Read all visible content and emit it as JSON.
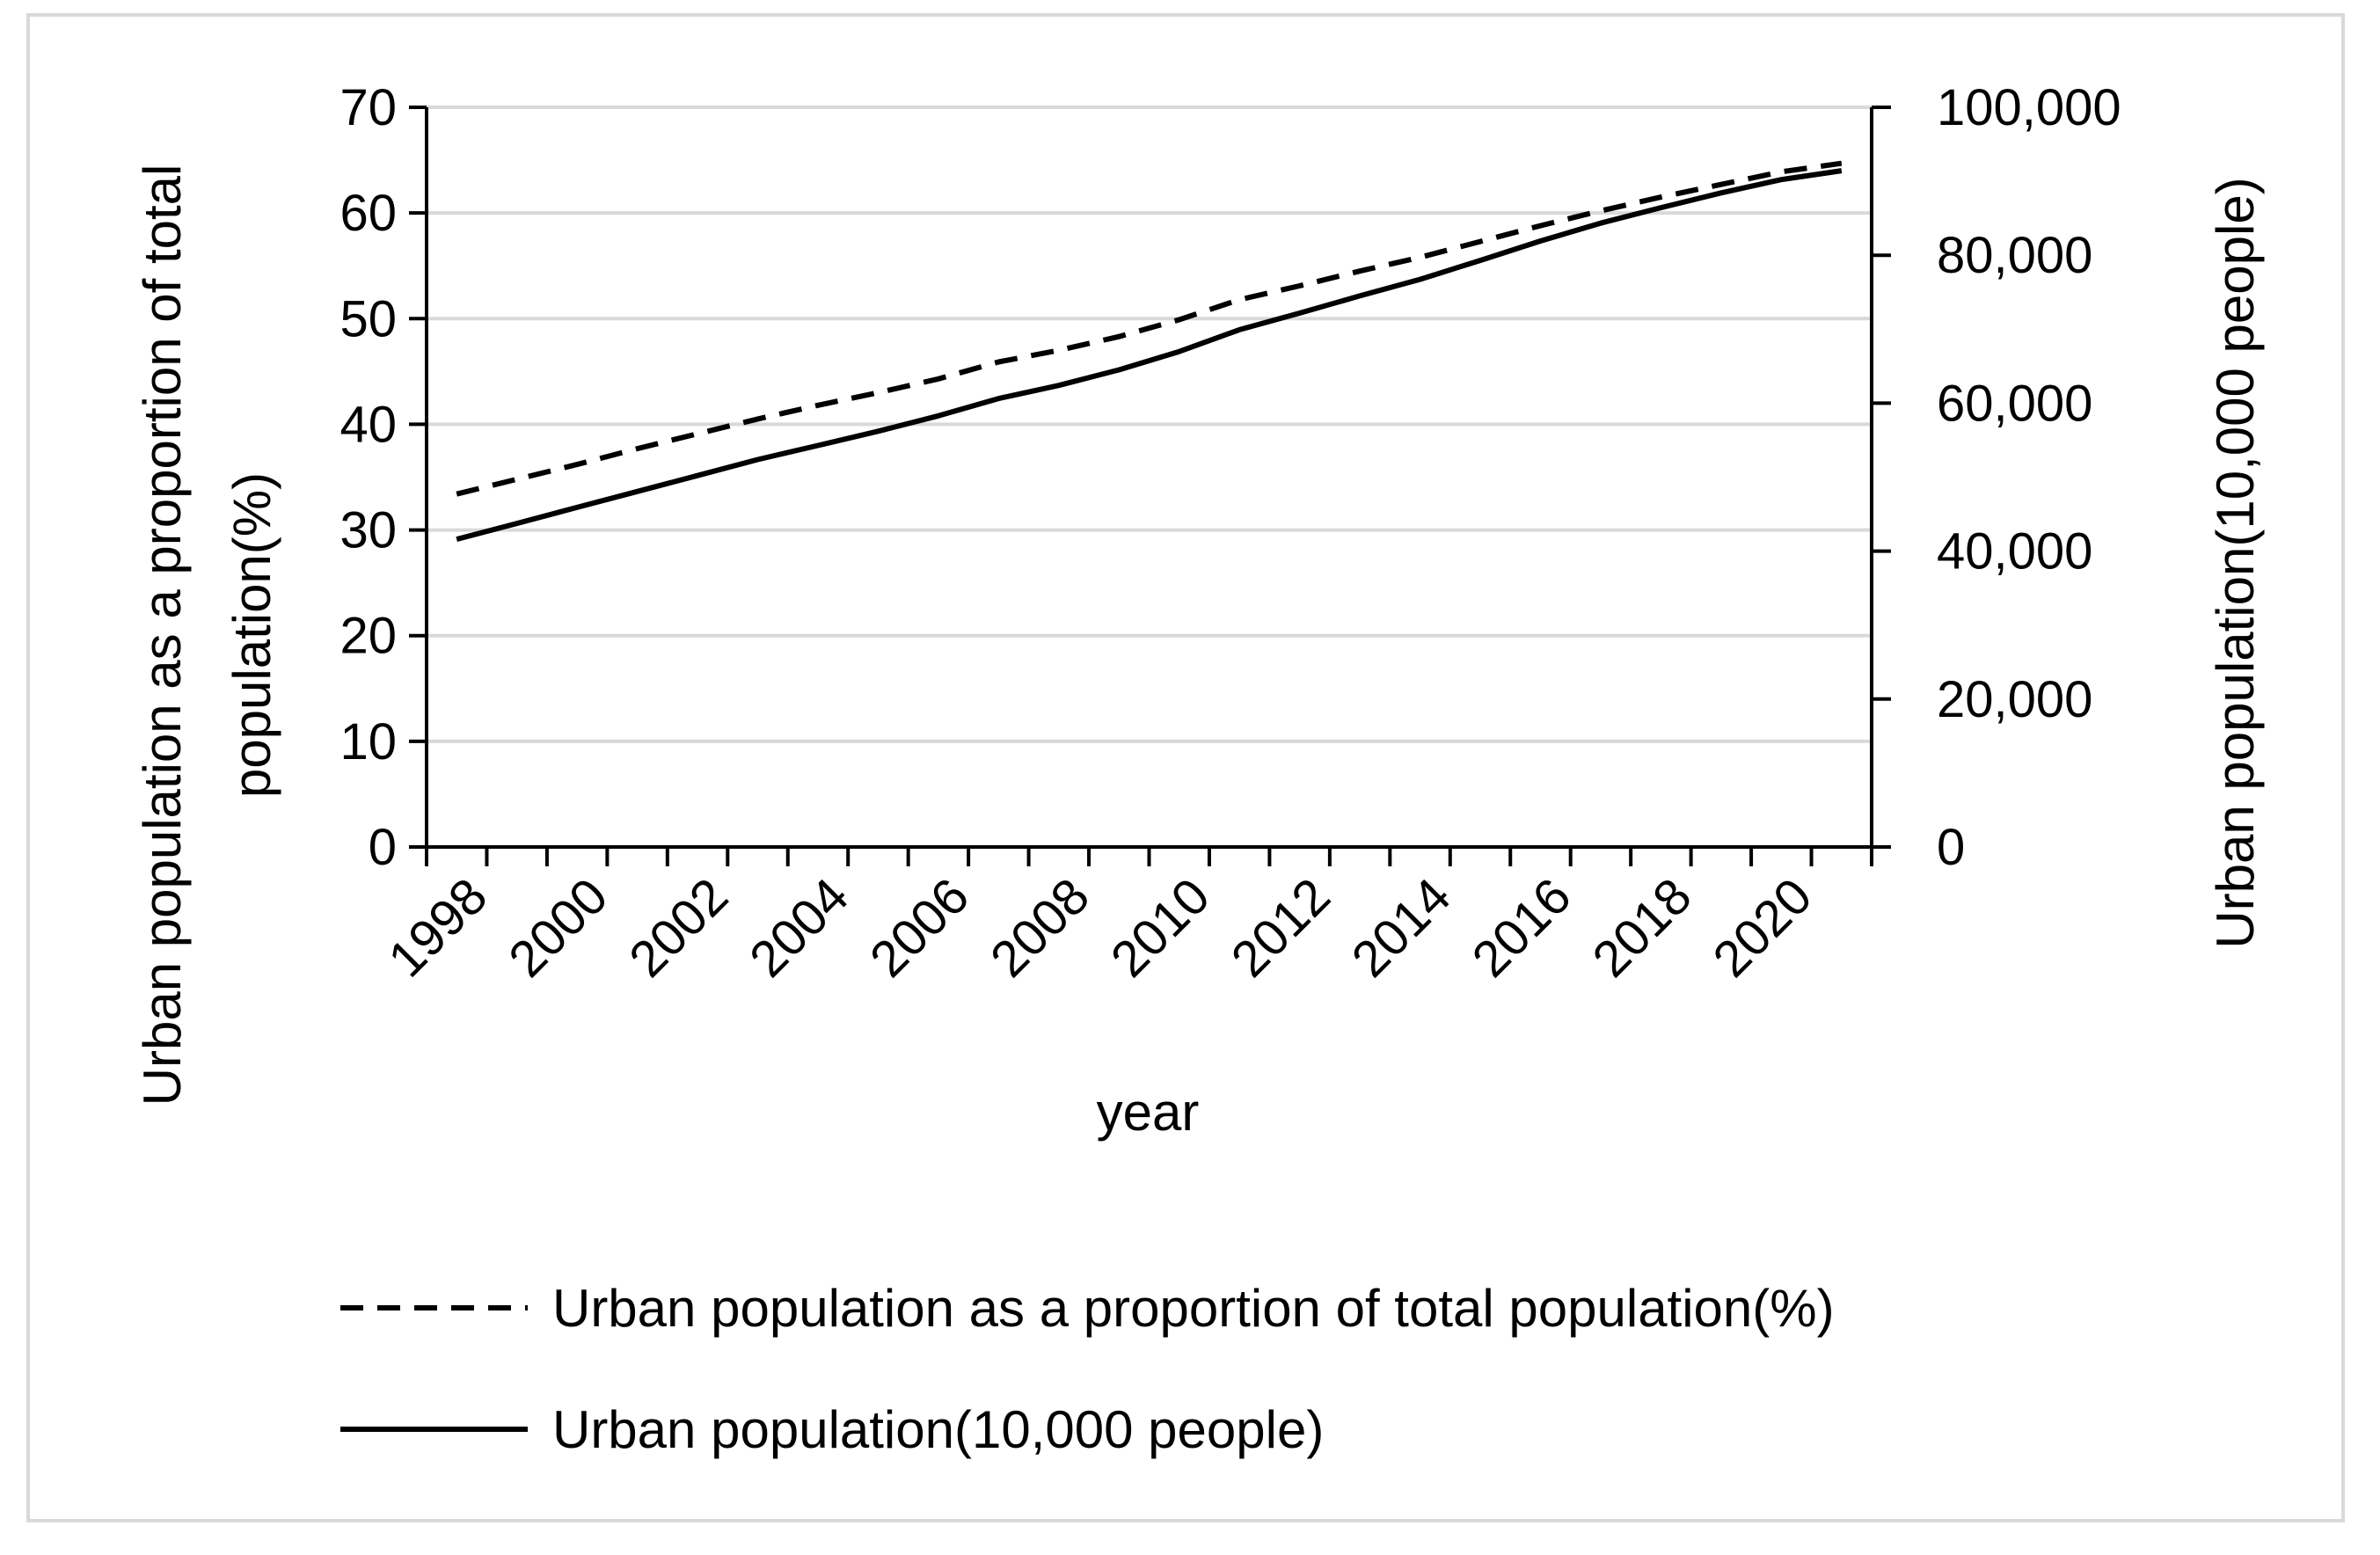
{
  "chart_data": {
    "type": "line",
    "title": "",
    "xlabel": "year",
    "ylabel_left": "Urban population as a proportion of total population(%)",
    "ylabel_left_lines": [
      "Urban population as a proportion of total",
      "population(%)"
    ],
    "ylabel_right": "Urban population(10,000 people)",
    "x": [
      1998,
      1999,
      2000,
      2001,
      2002,
      2003,
      2004,
      2005,
      2006,
      2007,
      2008,
      2009,
      2010,
      2011,
      2012,
      2013,
      2014,
      2015,
      2016,
      2017,
      2018,
      2019,
      2020,
      2021
    ],
    "x_tick_labels": [
      "1998",
      "2000",
      "2002",
      "2004",
      "2006",
      "2008",
      "2010",
      "2012",
      "2014",
      "2016",
      "2018",
      "2020"
    ],
    "ylim_left": [
      0,
      70
    ],
    "yticks_left": [
      "0",
      "10",
      "20",
      "30",
      "40",
      "50",
      "60",
      "70"
    ],
    "ylim_right": [
      0,
      100000
    ],
    "yticks_right": [
      "0",
      "20,000",
      "40,000",
      "60,000",
      "80,000",
      "100,000"
    ],
    "grid": true,
    "legend_position": "bottom",
    "series": [
      {
        "name": "Urban population as a proportion of total population(%)",
        "axis": "left",
        "style": "dashed",
        "values": [
          33.4,
          34.8,
          36.2,
          37.7,
          39.1,
          40.5,
          41.8,
          43.0,
          44.3,
          45.9,
          47.0,
          48.3,
          49.9,
          51.8,
          53.1,
          54.5,
          55.8,
          57.3,
          58.8,
          60.2,
          61.5,
          62.7,
          63.9,
          64.7
        ]
      },
      {
        "name": "Urban population(10,000 people)",
        "axis": "right",
        "style": "solid",
        "values": [
          41608,
          43748,
          45906,
          48064,
          50212,
          52376,
          54283,
          56212,
          58288,
          60633,
          62403,
          64512,
          66978,
          69927,
          72175,
          74502,
          76738,
          79302,
          81924,
          84343,
          86433,
          88426,
          90220,
          91425
        ]
      }
    ]
  }
}
